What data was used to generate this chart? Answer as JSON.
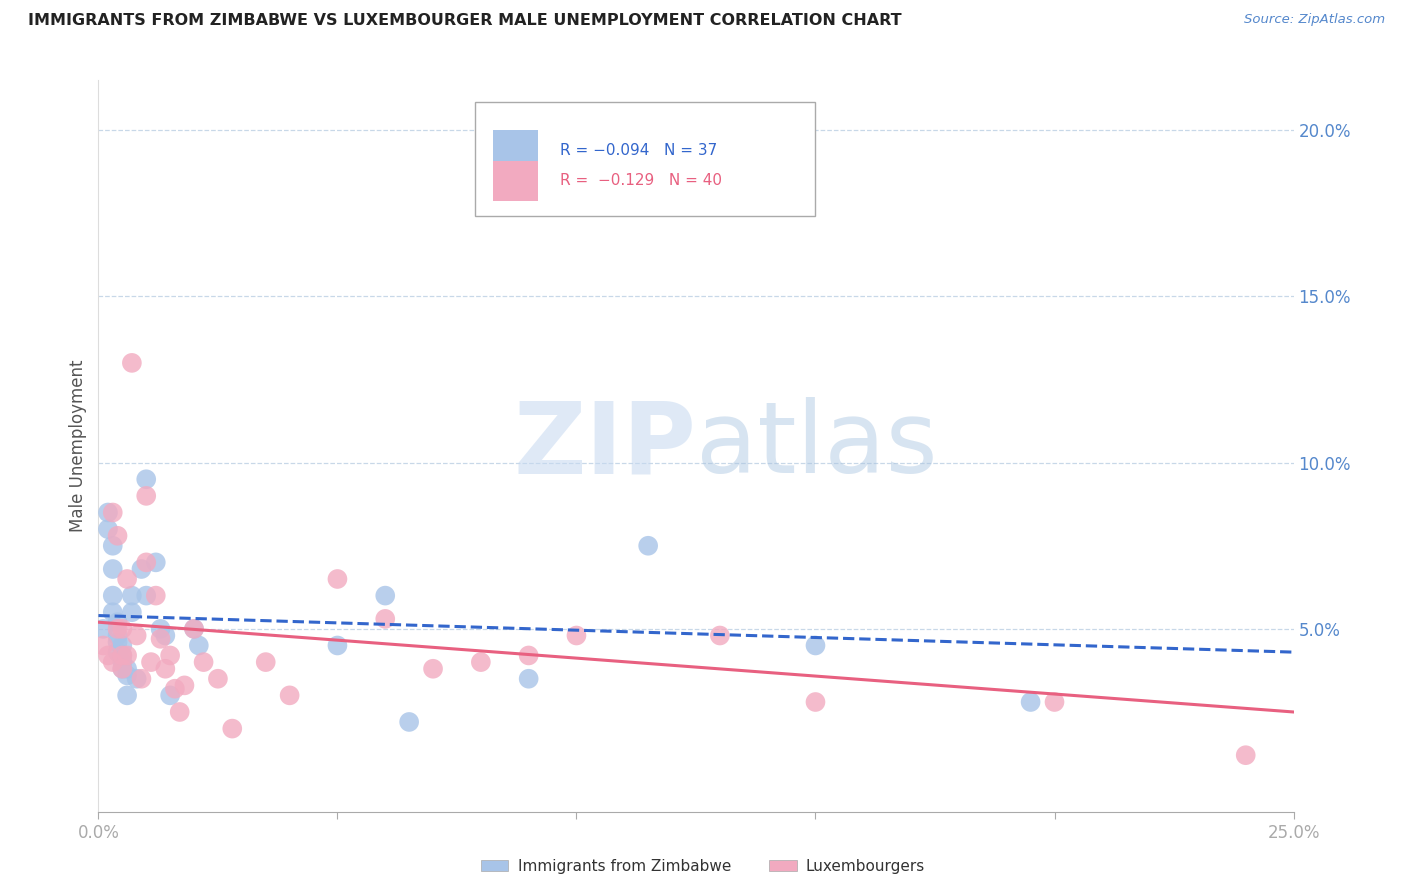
{
  "title": "IMMIGRANTS FROM ZIMBABWE VS LUXEMBOURGER MALE UNEMPLOYMENT CORRELATION CHART",
  "source": "Source: ZipAtlas.com",
  "ylabel": "Male Unemployment",
  "ytick_labels": [
    "20.0%",
    "15.0%",
    "10.0%",
    "5.0%"
  ],
  "ytick_values": [
    0.2,
    0.15,
    0.1,
    0.05
  ],
  "legend_blue_text": "R = −0.094   N = 37",
  "legend_pink_text": "R =  −0.129   N = 40",
  "blue_color": "#a8c4e8",
  "pink_color": "#f2aac0",
  "blue_line_color": "#3366cc",
  "pink_line_color": "#e86080",
  "axis_color": "#5588cc",
  "grid_color": "#c8d8e8",
  "watermark_color": "#d0dff0",
  "blue_scatter_x": [
    0.001,
    0.002,
    0.002,
    0.003,
    0.003,
    0.003,
    0.003,
    0.004,
    0.004,
    0.004,
    0.004,
    0.005,
    0.005,
    0.005,
    0.005,
    0.006,
    0.006,
    0.006,
    0.007,
    0.007,
    0.008,
    0.009,
    0.01,
    0.01,
    0.012,
    0.013,
    0.014,
    0.015,
    0.02,
    0.021,
    0.05,
    0.06,
    0.065,
    0.09,
    0.115,
    0.15,
    0.195
  ],
  "blue_scatter_y": [
    0.05,
    0.085,
    0.08,
    0.075,
    0.068,
    0.06,
    0.055,
    0.052,
    0.048,
    0.046,
    0.043,
    0.045,
    0.042,
    0.04,
    0.038,
    0.038,
    0.036,
    0.03,
    0.06,
    0.055,
    0.035,
    0.068,
    0.095,
    0.06,
    0.07,
    0.05,
    0.048,
    0.03,
    0.05,
    0.045,
    0.045,
    0.06,
    0.022,
    0.035,
    0.075,
    0.045,
    0.028
  ],
  "pink_scatter_x": [
    0.001,
    0.002,
    0.003,
    0.003,
    0.004,
    0.004,
    0.005,
    0.005,
    0.005,
    0.006,
    0.006,
    0.007,
    0.008,
    0.009,
    0.01,
    0.01,
    0.011,
    0.012,
    0.013,
    0.014,
    0.015,
    0.016,
    0.017,
    0.018,
    0.02,
    0.022,
    0.025,
    0.028,
    0.035,
    0.04,
    0.05,
    0.06,
    0.07,
    0.08,
    0.09,
    0.1,
    0.13,
    0.15,
    0.2,
    0.24
  ],
  "pink_scatter_y": [
    0.045,
    0.042,
    0.085,
    0.04,
    0.078,
    0.05,
    0.05,
    0.042,
    0.038,
    0.065,
    0.042,
    0.13,
    0.048,
    0.035,
    0.09,
    0.07,
    0.04,
    0.06,
    0.047,
    0.038,
    0.042,
    0.032,
    0.025,
    0.033,
    0.05,
    0.04,
    0.035,
    0.02,
    0.04,
    0.03,
    0.065,
    0.053,
    0.038,
    0.04,
    0.042,
    0.048,
    0.048,
    0.028,
    0.028,
    0.012
  ],
  "xlim": [
    0.0,
    0.25
  ],
  "ylim": [
    -0.005,
    0.215
  ],
  "blue_trend_x": [
    0.0,
    0.25
  ],
  "blue_trend_y": [
    0.054,
    0.043
  ],
  "pink_trend_x": [
    0.0,
    0.25
  ],
  "pink_trend_y": [
    0.052,
    0.025
  ],
  "xtick_positions": [
    0.0,
    0.05,
    0.1,
    0.15,
    0.2,
    0.25
  ],
  "legend_label_blue": "Immigrants from Zimbabwe",
  "legend_label_pink": "Luxembourgers"
}
